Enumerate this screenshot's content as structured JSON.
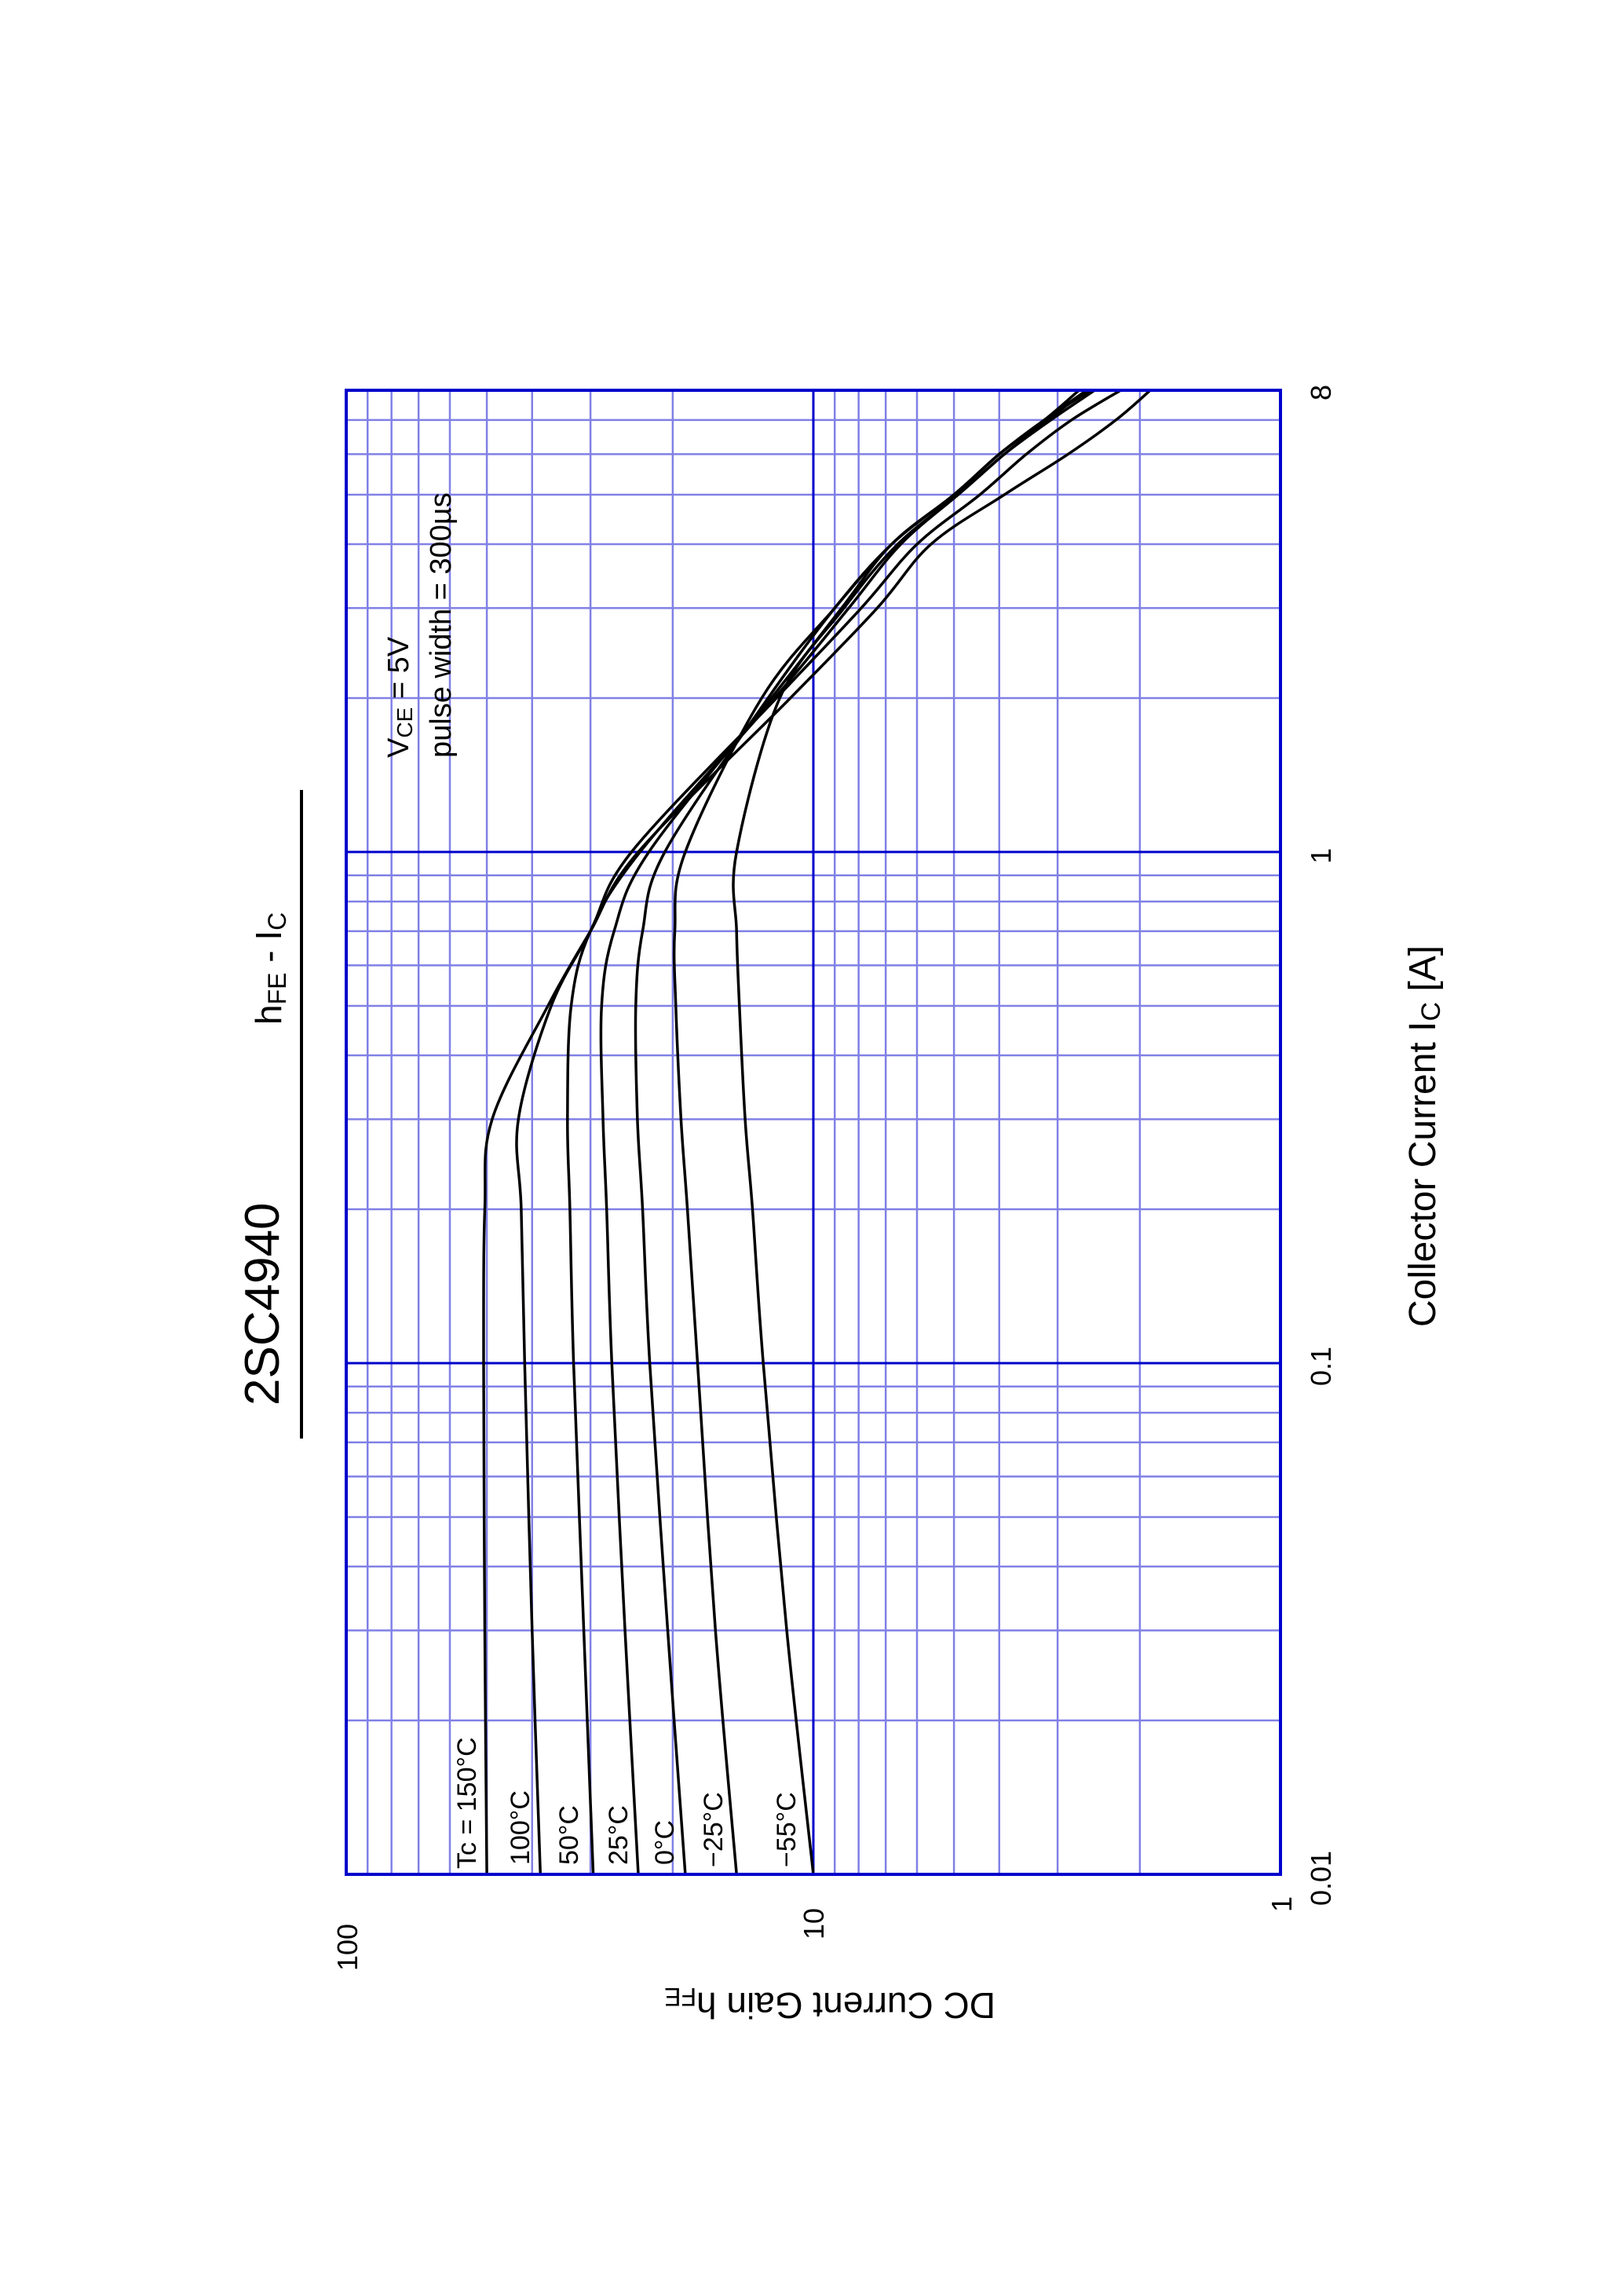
{
  "title": {
    "part_number": "2SC4940",
    "subtitle_main": "h",
    "subtitle_sub1": "FE",
    "subtitle_mid": " - I",
    "subtitle_sub2": "C"
  },
  "annotation": {
    "line1_main": "V",
    "line1_sub": "CE",
    "line1_rest": " = 5V",
    "line2": "pulse width = 300µs"
  },
  "axes": {
    "x_label_main": "Collector Current  I",
    "x_label_sub": "C",
    "x_label_rest": " [A]",
    "y_label_main": "DC Current Gain  h",
    "y_label_sub": "FE",
    "x_ticks": [
      "0.01",
      "0.1",
      "1",
      "8"
    ],
    "y_ticks": [
      "100",
      "10",
      "1"
    ]
  },
  "legend": {
    "labels": [
      "Tc = 150°C",
      "100°C",
      "50°C",
      "25°C",
      "0°C",
      "−25°C",
      "−55°C"
    ]
  },
  "colors": {
    "major_grid": "#0000cc",
    "minor_grid": "#8080e6",
    "curve": "#000000"
  },
  "chart_data": {
    "type": "line",
    "title": "2SC4940  hFE - IC",
    "xlabel": "Collector Current IC [A]",
    "ylabel": "DC Current Gain hFE",
    "xscale": "log",
    "yscale": "log",
    "xlim": [
      0.01,
      8
    ],
    "ylim": [
      1,
      100
    ],
    "grid": true,
    "orientation_note": "page rotated 90 degrees; IC axis runs vertically",
    "annotation": "VCE = 5V, pulse width = 300µs",
    "x": [
      0.01,
      0.03,
      0.1,
      0.2,
      0.3,
      0.5,
      0.7,
      1,
      2,
      3,
      4,
      5,
      6,
      7,
      8
    ],
    "series": [
      {
        "name": "Tc = 150°C",
        "values": [
          50,
          50.5,
          50.8,
          50.5,
          48.7,
          37,
          30,
          23.7,
          11.2,
          7.3,
          5.6,
          3.9,
          2.85,
          2.25,
          1.9
        ]
      },
      {
        "name": "100°C",
        "values": [
          38.4,
          40,
          41.5,
          42.2,
          42.8,
          36.4,
          30,
          24.5,
          12.0,
          7.9,
          6.0,
          4.4,
          3.5,
          2.8,
          2.2
        ]
      },
      {
        "name": "50°C",
        "values": [
          29.6,
          31,
          32.6,
          33.2,
          33.6,
          33,
          30,
          23.5,
          12.1,
          8.4,
          6.5,
          4.9,
          3.9,
          3.1,
          2.5
        ]
      },
      {
        "name": "25°C",
        "values": [
          23.7,
          25.3,
          27.0,
          27.7,
          28.2,
          28.4,
          26.7,
          22.5,
          12.3,
          8.7,
          6.8,
          5.0,
          4.0,
          3.2,
          2.55
        ]
      },
      {
        "name": "0°C",
        "values": [
          18.8,
          20.5,
          22.4,
          23.2,
          23.8,
          24,
          23.2,
          20.8,
          12.5,
          9.0,
          6.8,
          5.0,
          4.0,
          3.2,
          2.6
        ]
      },
      {
        "name": "−25°C",
        "values": [
          14.6,
          16.2,
          17.7,
          18.6,
          19.2,
          19.7,
          19.8,
          18.8,
          12.9,
          9.0,
          6.8,
          5.0,
          4.0,
          3.2,
          2.7
        ]
      },
      {
        "name": "−55°C",
        "values": [
          10.0,
          11.4,
          12.8,
          13.5,
          14.0,
          14.4,
          14.6,
          14.6,
          11.8,
          8.6,
          6.6,
          4.9,
          3.9,
          3.15,
          2.6
        ]
      }
    ]
  }
}
